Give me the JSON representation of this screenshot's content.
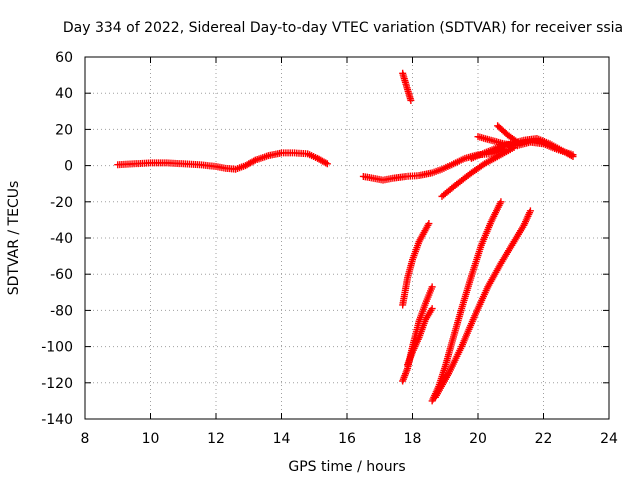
{
  "chart_data": {
    "type": "scatter",
    "title": "Day 334 of 2022, Sidereal Day-to-day VTEC variation (SDTVAR) for receiver ssia",
    "xlabel": "GPS time / hours",
    "ylabel": "SDTVAR / TECUs",
    "xlim": [
      8,
      24
    ],
    "ylim": [
      -140,
      60
    ],
    "xticks": [
      8,
      10,
      12,
      14,
      16,
      18,
      20,
      22,
      24
    ],
    "yticks": [
      -140,
      -120,
      -100,
      -80,
      -60,
      -40,
      -20,
      0,
      20,
      40,
      60
    ],
    "grid": true,
    "marker": "+",
    "color": "#ff0000",
    "series": [
      {
        "points": [
          [
            9.0,
            0.5
          ],
          [
            9.5,
            1.0
          ],
          [
            10.0,
            1.5
          ],
          [
            10.5,
            1.5
          ],
          [
            11.0,
            1.0
          ],
          [
            11.5,
            0.5
          ],
          [
            12.0,
            -0.5
          ],
          [
            12.3,
            -1.5
          ],
          [
            12.6,
            -2.0
          ],
          [
            12.9,
            0.0
          ],
          [
            13.2,
            3.0
          ],
          [
            13.6,
            5.5
          ],
          [
            14.0,
            7.0
          ],
          [
            14.4,
            7.0
          ],
          [
            14.8,
            6.5
          ],
          [
            15.1,
            4.0
          ],
          [
            15.4,
            1.0
          ]
        ]
      },
      {
        "points": [
          [
            16.5,
            -6.0
          ],
          [
            16.8,
            -7.0
          ],
          [
            17.1,
            -8.0
          ],
          [
            17.4,
            -7.0
          ],
          [
            17.8,
            -6.0
          ],
          [
            18.2,
            -5.5
          ],
          [
            18.6,
            -4.0
          ],
          [
            18.9,
            -2.0
          ],
          [
            19.2,
            0.5
          ],
          [
            19.6,
            4.0
          ],
          [
            20.0,
            6.0
          ],
          [
            20.4,
            6.5
          ],
          [
            20.8,
            9.0
          ]
        ]
      },
      {
        "points": [
          [
            17.7,
            51
          ],
          [
            17.8,
            45
          ],
          [
            17.9,
            39
          ],
          [
            17.95,
            36
          ]
        ]
      },
      {
        "points": [
          [
            20.0,
            16
          ],
          [
            20.4,
            14
          ],
          [
            20.8,
            12
          ],
          [
            21.2,
            11
          ],
          [
            21.6,
            13
          ],
          [
            22.0,
            12
          ],
          [
            22.4,
            9
          ],
          [
            22.9,
            6
          ]
        ]
      },
      {
        "points": [
          [
            19.8,
            4
          ],
          [
            20.2,
            7
          ],
          [
            20.6,
            10
          ],
          [
            21.0,
            12
          ],
          [
            21.4,
            14
          ],
          [
            21.8,
            15
          ],
          [
            22.2,
            12
          ],
          [
            22.6,
            8
          ],
          [
            22.9,
            5
          ]
        ]
      },
      {
        "points": [
          [
            20.6,
            22
          ],
          [
            20.9,
            17
          ],
          [
            21.2,
            13
          ]
        ]
      },
      {
        "points": [
          [
            18.9,
            -17
          ],
          [
            19.3,
            -11
          ],
          [
            19.8,
            -4
          ],
          [
            20.2,
            1
          ],
          [
            20.7,
            6
          ],
          [
            21.1,
            10
          ]
        ]
      },
      {
        "points": [
          [
            17.7,
            -77
          ],
          [
            17.85,
            -62
          ],
          [
            18.0,
            -52
          ],
          [
            18.2,
            -42
          ],
          [
            18.5,
            -32
          ]
        ]
      },
      {
        "points": [
          [
            17.7,
            -119
          ],
          [
            17.85,
            -112
          ],
          [
            18.0,
            -100
          ],
          [
            18.2,
            -86
          ],
          [
            18.4,
            -76
          ],
          [
            18.6,
            -67
          ]
        ]
      },
      {
        "points": [
          [
            17.85,
            -110
          ],
          [
            18.0,
            -103
          ],
          [
            18.2,
            -95
          ],
          [
            18.4,
            -85
          ],
          [
            18.6,
            -79
          ]
        ]
      },
      {
        "points": [
          [
            18.6,
            -130
          ],
          [
            18.8,
            -122
          ],
          [
            19.0,
            -111
          ],
          [
            19.2,
            -98
          ],
          [
            19.5,
            -79
          ],
          [
            19.8,
            -61
          ],
          [
            20.1,
            -44
          ],
          [
            20.4,
            -31
          ],
          [
            20.7,
            -20
          ]
        ]
      },
      {
        "points": [
          [
            18.7,
            -128
          ],
          [
            19.1,
            -115
          ],
          [
            19.5,
            -100
          ],
          [
            19.9,
            -83
          ],
          [
            20.3,
            -67
          ],
          [
            20.7,
            -54
          ],
          [
            21.1,
            -42
          ],
          [
            21.4,
            -33
          ],
          [
            21.6,
            -25
          ]
        ]
      }
    ]
  }
}
